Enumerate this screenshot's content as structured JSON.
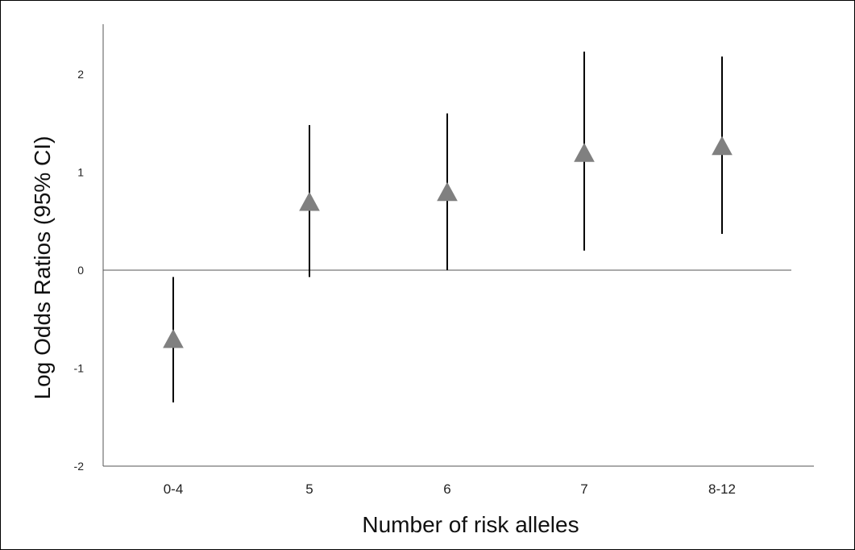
{
  "chart_data": {
    "type": "scatter",
    "title": "",
    "xlabel": "Number of risk alleles",
    "ylabel": "Log Odds Ratios (95% CI)",
    "categories": [
      "0-4",
      "5",
      "6",
      "7",
      "8-12"
    ],
    "ylim": [
      -2,
      2.5
    ],
    "yticks": [
      -2,
      -1,
      0,
      1,
      2
    ],
    "ytick_labels": [
      "-2",
      "-1",
      "0",
      "1",
      "2"
    ],
    "series": [
      {
        "values": [
          -0.7,
          0.7,
          0.8,
          1.2,
          1.27
        ],
        "ci_lower": [
          -1.35,
          -0.07,
          0.0,
          0.2,
          0.37
        ],
        "ci_upper": [
          -0.07,
          1.48,
          1.6,
          2.23,
          2.18
        ]
      }
    ],
    "marker": "triangle",
    "marker_color": "#808080",
    "errorbar_color": "#000000",
    "grid": false,
    "legend": "none"
  }
}
